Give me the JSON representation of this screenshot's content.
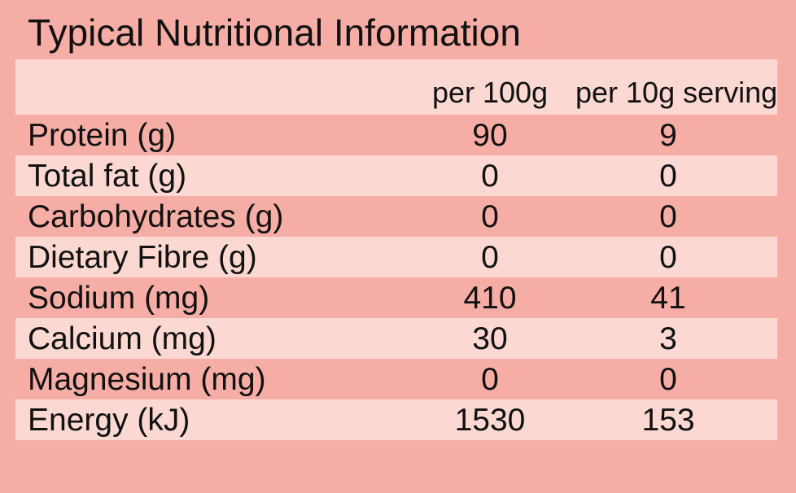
{
  "title": "Typical Nutritional Information",
  "table": {
    "col_headers": {
      "label": "",
      "per_100g": "per 100g",
      "per_serving": "per 10g serving"
    },
    "rows": [
      {
        "label": "Protein (g)",
        "per_100g": "90",
        "per_serving": "9"
      },
      {
        "label": "Total fat (g)",
        "per_100g": "0",
        "per_serving": "0"
      },
      {
        "label": "Carbohydrates (g)",
        "per_100g": "0",
        "per_serving": "0"
      },
      {
        "label": "Dietary Fibre (g)",
        "per_100g": "0",
        "per_serving": "0"
      },
      {
        "label": "Sodium (mg)",
        "per_100g": "410",
        "per_serving": "41"
      },
      {
        "label": "Calcium (mg)",
        "per_100g": "30",
        "per_serving": "3"
      },
      {
        "label": "Magnesium (mg)",
        "per_100g": "0",
        "per_serving": "0"
      },
      {
        "label": "Energy (kJ)",
        "per_100g": "1530",
        "per_serving": "153"
      }
    ]
  },
  "colors": {
    "background_salmon": "#f6ada6",
    "row_light_pink": "#fbd8d2",
    "text": "#111111"
  },
  "chart_data": {
    "type": "table",
    "title": "Typical Nutritional Information",
    "columns": [
      "",
      "per 100g",
      "per 10g serving"
    ],
    "rows": [
      [
        "Protein (g)",
        90,
        9
      ],
      [
        "Total fat (g)",
        0,
        0
      ],
      [
        "Carbohydrates (g)",
        0,
        0
      ],
      [
        "Dietary Fibre (g)",
        0,
        0
      ],
      [
        "Sodium (mg)",
        410,
        41
      ],
      [
        "Calcium (mg)",
        30,
        3
      ],
      [
        "Magnesium (mg)",
        0,
        0
      ],
      [
        "Energy (kJ)",
        1530,
        153
      ]
    ]
  }
}
